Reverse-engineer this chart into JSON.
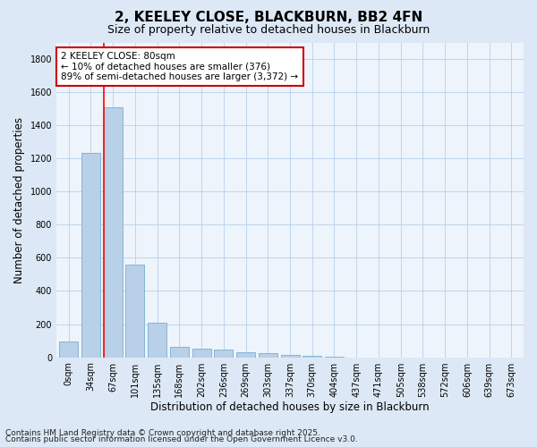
{
  "title": "2, KEELEY CLOSE, BLACKBURN, BB2 4FN",
  "subtitle": "Size of property relative to detached houses in Blackburn",
  "xlabel": "Distribution of detached houses by size in Blackburn",
  "ylabel": "Number of detached properties",
  "categories": [
    "0sqm",
    "34sqm",
    "67sqm",
    "101sqm",
    "135sqm",
    "168sqm",
    "202sqm",
    "236sqm",
    "269sqm",
    "303sqm",
    "337sqm",
    "370sqm",
    "404sqm",
    "437sqm",
    "471sqm",
    "505sqm",
    "538sqm",
    "572sqm",
    "606sqm",
    "639sqm",
    "673sqm"
  ],
  "values": [
    97,
    1235,
    1510,
    560,
    207,
    65,
    50,
    48,
    30,
    25,
    15,
    8,
    5,
    0,
    0,
    0,
    0,
    0,
    0,
    0,
    0
  ],
  "bar_color": "#b8d0e8",
  "bar_edge_color": "#7aaed0",
  "red_line_x": 1.575,
  "annotation_text": "2 KEELEY CLOSE: 80sqm\n← 10% of detached houses are smaller (376)\n89% of semi-detached houses are larger (3,372) →",
  "annotation_box_facecolor": "#ffffff",
  "annotation_box_edgecolor": "#cc0000",
  "ylim": [
    0,
    1900
  ],
  "yticks": [
    0,
    200,
    400,
    600,
    800,
    1000,
    1200,
    1400,
    1600,
    1800
  ],
  "footer_line1": "Contains HM Land Registry data © Crown copyright and database right 2025.",
  "footer_line2": "Contains public sector information licensed under the Open Government Licence v3.0.",
  "bg_color": "#dce8f5",
  "plot_bg_color": "#eef4fc",
  "grid_color": "#b8cfe8",
  "title_fontsize": 11,
  "subtitle_fontsize": 9,
  "axis_label_fontsize": 8.5,
  "tick_fontsize": 7,
  "footer_fontsize": 6.5,
  "annot_fontsize": 7.5
}
